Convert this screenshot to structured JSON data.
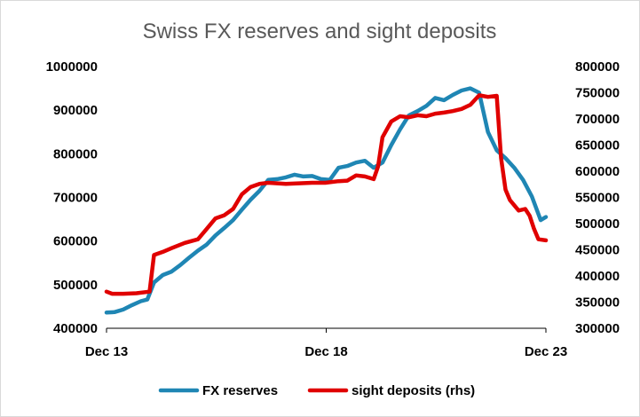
{
  "chart_data": {
    "type": "line",
    "title": "Swiss FX reserves and sight deposits",
    "x_tick_labels": [
      "Dec 13",
      "Dec 18",
      "Dec 23"
    ],
    "x_tick_values": [
      2013.92,
      2018.92,
      2023.92
    ],
    "xlim": [
      2013.92,
      2023.92
    ],
    "y_left": {
      "lim": [
        400000,
        1000000
      ],
      "ticks": [
        "400000",
        "500000",
        "600000",
        "700000",
        "800000",
        "900000",
        "1000000"
      ]
    },
    "y_right": {
      "lim": [
        300000,
        800000
      ],
      "ticks": [
        "300000",
        "350000",
        "400000",
        "450000",
        "500000",
        "550000",
        "600000",
        "650000",
        "700000",
        "750000",
        "800000"
      ]
    },
    "grid": false,
    "legend_position": "bottom",
    "series": [
      {
        "name": "FX reserves",
        "axis": "left",
        "color": "#1f86b4",
        "points": [
          [
            2013.92,
            436000
          ],
          [
            2014.1,
            437000
          ],
          [
            2014.3,
            443000
          ],
          [
            2014.5,
            453000
          ],
          [
            2014.7,
            462000
          ],
          [
            2014.85,
            466000
          ],
          [
            2015.0,
            505000
          ],
          [
            2015.2,
            522000
          ],
          [
            2015.4,
            530000
          ],
          [
            2015.6,
            545000
          ],
          [
            2015.8,
            562000
          ],
          [
            2016.0,
            578000
          ],
          [
            2016.2,
            592000
          ],
          [
            2016.4,
            613000
          ],
          [
            2016.6,
            630000
          ],
          [
            2016.8,
            648000
          ],
          [
            2017.0,
            672000
          ],
          [
            2017.2,
            695000
          ],
          [
            2017.4,
            715000
          ],
          [
            2017.6,
            740000
          ],
          [
            2017.8,
            742000
          ],
          [
            2018.0,
            746000
          ],
          [
            2018.2,
            752000
          ],
          [
            2018.4,
            748000
          ],
          [
            2018.6,
            749000
          ],
          [
            2018.8,
            742000
          ],
          [
            2019.0,
            740000
          ],
          [
            2019.2,
            768000
          ],
          [
            2019.4,
            772000
          ],
          [
            2019.6,
            780000
          ],
          [
            2019.8,
            784000
          ],
          [
            2020.0,
            768000
          ],
          [
            2020.2,
            780000
          ],
          [
            2020.4,
            820000
          ],
          [
            2020.6,
            856000
          ],
          [
            2020.8,
            888000
          ],
          [
            2021.0,
            898000
          ],
          [
            2021.2,
            910000
          ],
          [
            2021.4,
            928000
          ],
          [
            2021.6,
            923000
          ],
          [
            2021.8,
            935000
          ],
          [
            2022.0,
            945000
          ],
          [
            2022.2,
            950000
          ],
          [
            2022.4,
            940000
          ],
          [
            2022.6,
            850000
          ],
          [
            2022.8,
            808000
          ],
          [
            2023.0,
            790000
          ],
          [
            2023.2,
            768000
          ],
          [
            2023.4,
            740000
          ],
          [
            2023.6,
            702000
          ],
          [
            2023.8,
            648000
          ],
          [
            2023.92,
            655000
          ]
        ]
      },
      {
        "name": "sight deposits (rhs)",
        "axis": "right",
        "color": "#e00000",
        "points": [
          [
            2013.92,
            370000
          ],
          [
            2014.05,
            366000
          ],
          [
            2014.3,
            366000
          ],
          [
            2014.6,
            367000
          ],
          [
            2014.9,
            370000
          ],
          [
            2015.0,
            440000
          ],
          [
            2015.2,
            446000
          ],
          [
            2015.4,
            453000
          ],
          [
            2015.7,
            463000
          ],
          [
            2016.0,
            470000
          ],
          [
            2016.2,
            490000
          ],
          [
            2016.4,
            510000
          ],
          [
            2016.6,
            516000
          ],
          [
            2016.8,
            528000
          ],
          [
            2017.0,
            556000
          ],
          [
            2017.2,
            570000
          ],
          [
            2017.4,
            576000
          ],
          [
            2017.6,
            578000
          ],
          [
            2017.8,
            577000
          ],
          [
            2018.0,
            576000
          ],
          [
            2018.3,
            577000
          ],
          [
            2018.6,
            578000
          ],
          [
            2018.9,
            578000
          ],
          [
            2019.2,
            581000
          ],
          [
            2019.4,
            582000
          ],
          [
            2019.6,
            592000
          ],
          [
            2019.8,
            590000
          ],
          [
            2020.0,
            585000
          ],
          [
            2020.1,
            609000
          ],
          [
            2020.2,
            665000
          ],
          [
            2020.4,
            695000
          ],
          [
            2020.6,
            705000
          ],
          [
            2020.8,
            703000
          ],
          [
            2021.0,
            707000
          ],
          [
            2021.2,
            705000
          ],
          [
            2021.4,
            710000
          ],
          [
            2021.6,
            712000
          ],
          [
            2021.8,
            715000
          ],
          [
            2022.0,
            719000
          ],
          [
            2022.2,
            727000
          ],
          [
            2022.4,
            745000
          ],
          [
            2022.6,
            742000
          ],
          [
            2022.8,
            744000
          ],
          [
            2022.9,
            625000
          ],
          [
            2023.0,
            565000
          ],
          [
            2023.1,
            545000
          ],
          [
            2023.3,
            525000
          ],
          [
            2023.45,
            528000
          ],
          [
            2023.55,
            515000
          ],
          [
            2023.65,
            490000
          ],
          [
            2023.75,
            470000
          ],
          [
            2023.92,
            468000
          ]
        ]
      }
    ]
  }
}
